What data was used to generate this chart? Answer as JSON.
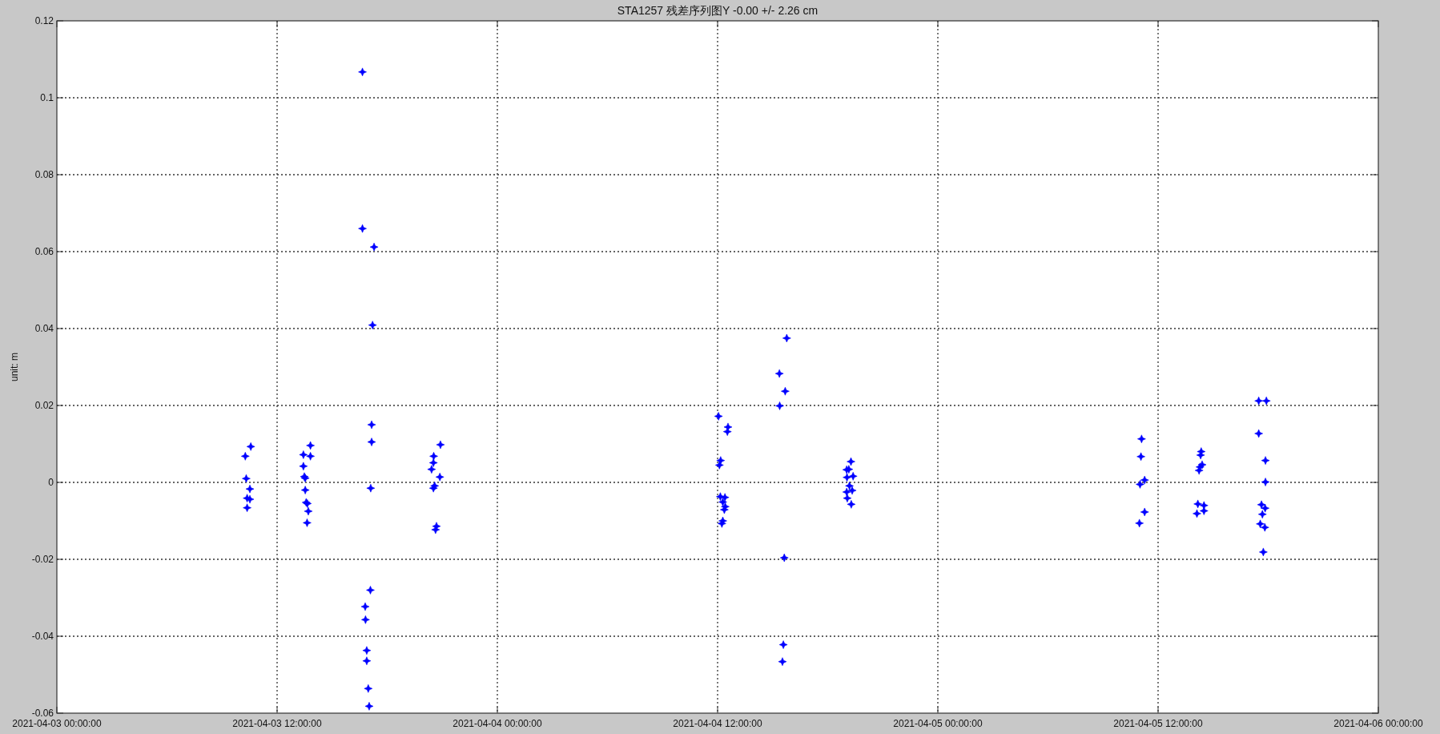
{
  "chart_data": {
    "type": "scatter",
    "title": "STA1257 残差序列图Y -0.00 +/- 2.26 cm",
    "ylabel": "unit: m",
    "x": [
      "2021-04-03T10:34",
      "2021-04-03T10:16",
      "2021-04-03T10:19",
      "2021-04-03T10:31",
      "2021-04-03T10:22",
      "2021-04-03T10:31",
      "2021-04-03T10:22",
      "2021-04-03T13:49",
      "2021-04-03T13:26",
      "2021-04-03T13:49",
      "2021-04-03T13:26",
      "2021-04-03T13:29",
      "2021-04-03T13:32",
      "2021-04-03T13:32",
      "2021-04-03T13:35",
      "2021-04-03T13:39",
      "2021-04-03T13:42",
      "2021-04-03T13:38",
      "2021-04-03T16:39",
      "2021-04-03T16:39",
      "2021-04-03T17:17",
      "2021-04-03T17:12",
      "2021-04-03T17:09",
      "2021-04-03T17:09",
      "2021-04-03T17:06",
      "2021-04-03T17:05",
      "2021-04-03T16:48",
      "2021-04-03T16:49",
      "2021-04-03T16:53",
      "2021-04-03T16:53",
      "2021-04-03T16:58",
      "2021-04-03T17:01",
      "2021-04-03T20:54",
      "2021-04-03T20:32",
      "2021-04-03T20:31",
      "2021-04-03T20:25",
      "2021-04-03T20:52",
      "2021-04-03T20:35",
      "2021-04-03T20:31",
      "2021-04-03T20:41",
      "2021-04-03T20:38",
      "2021-04-04T12:03",
      "2021-04-04T12:34",
      "2021-04-04T12:32",
      "2021-04-04T12:10",
      "2021-04-04T12:06",
      "2021-04-04T12:09",
      "2021-04-04T12:24",
      "2021-04-04T12:17",
      "2021-04-04T12:25",
      "2021-04-04T12:22",
      "2021-04-04T12:17",
      "2021-04-04T12:14",
      "2021-04-04T15:46",
      "2021-04-04T15:22",
      "2021-04-04T15:41",
      "2021-04-04T15:23",
      "2021-04-04T15:38",
      "2021-04-04T15:35",
      "2021-04-04T15:32",
      "2021-04-04T19:16",
      "2021-04-04T19:02",
      "2021-04-04T19:09",
      "2021-04-04T19:23",
      "2021-04-04T19:03",
      "2021-04-04T19:11",
      "2021-04-04T19:20",
      "2021-04-04T19:02",
      "2021-04-04T19:04",
      "2021-04-04T19:17",
      "2021-04-05T11:06",
      "2021-04-05T11:04",
      "2021-04-05T11:16",
      "2021-04-05T11:01",
      "2021-04-05T11:16",
      "2021-04-05T10:59",
      "2021-04-05T14:21",
      "2021-04-05T14:19",
      "2021-04-05T14:24",
      "2021-04-05T14:17",
      "2021-04-05T14:14",
      "2021-04-05T14:10",
      "2021-04-05T14:30",
      "2021-04-05T14:30",
      "2021-04-05T14:07",
      "2021-04-05T17:29",
      "2021-04-05T17:54",
      "2021-04-05T17:29",
      "2021-04-05T17:51",
      "2021-04-05T17:51",
      "2021-04-05T17:38",
      "2021-04-05T17:50",
      "2021-04-05T17:41",
      "2021-04-05T17:34",
      "2021-04-05T17:49",
      "2021-04-05T17:44"
    ],
    "values": [
      0.0093,
      0.0068,
      0.001,
      -0.0017,
      -0.0041,
      -0.0044,
      -0.0066,
      0.0096,
      0.0072,
      0.0068,
      0.0042,
      0.0015,
      0.0011,
      -0.002,
      -0.0052,
      -0.0055,
      -0.0075,
      -0.0105,
      0.1067,
      0.066,
      0.0612,
      0.0409,
      0.015,
      0.0105,
      -0.0015,
      -0.028,
      -0.0323,
      -0.0357,
      -0.0437,
      -0.0464,
      -0.0536,
      -0.0582,
      0.0098,
      0.0068,
      0.0051,
      0.0034,
      0.0014,
      -0.0009,
      -0.0015,
      -0.0114,
      -0.0123,
      0.0172,
      0.0144,
      0.0132,
      0.0057,
      0.0045,
      -0.0037,
      -0.0039,
      -0.0051,
      -0.0063,
      -0.0071,
      -0.01,
      -0.0107,
      0.0375,
      0.0283,
      0.0237,
      0.0199,
      -0.0196,
      -0.0422,
      -0.0466,
      0.0054,
      0.0033,
      0.0034,
      0.0016,
      0.0013,
      -0.0009,
      -0.0021,
      -0.0025,
      -0.0041,
      -0.0057,
      0.0113,
      0.0067,
      0.0006,
      -0.0005,
      -0.0077,
      -0.0106,
      0.008,
      0.0071,
      0.0046,
      0.004,
      0.0031,
      -0.0056,
      -0.006,
      -0.0074,
      -0.0081,
      0.0212,
      0.0212,
      0.0127,
      0.0057,
      0.0001,
      -0.0058,
      -0.0067,
      -0.0083,
      -0.0108,
      -0.0117,
      -0.0181
    ],
    "color": "#0000ff",
    "marker": "star",
    "grid": true,
    "xlim": [
      "2021-04-03T00:00",
      "2021-04-06T00:00"
    ],
    "xticks": [
      {
        "value": "2021-04-03T00:00",
        "label": "2021-04-03 00:00:00"
      },
      {
        "value": "2021-04-03T12:00",
        "label": "2021-04-03 12:00:00"
      },
      {
        "value": "2021-04-04T00:00",
        "label": "2021-04-04 00:00:00"
      },
      {
        "value": "2021-04-04T12:00",
        "label": "2021-04-04 12:00:00"
      },
      {
        "value": "2021-04-05T00:00",
        "label": "2021-04-05 00:00:00"
      },
      {
        "value": "2021-04-05T12:00",
        "label": "2021-04-05 12:00:00"
      },
      {
        "value": "2021-04-06T00:00",
        "label": "2021-04-06 00:00:00"
      }
    ],
    "ylim": [
      -0.06,
      0.12
    ],
    "yticks": [
      -0.06,
      -0.04,
      -0.02,
      0,
      0.02,
      0.04,
      0.06,
      0.08,
      0.1,
      0.12
    ]
  }
}
